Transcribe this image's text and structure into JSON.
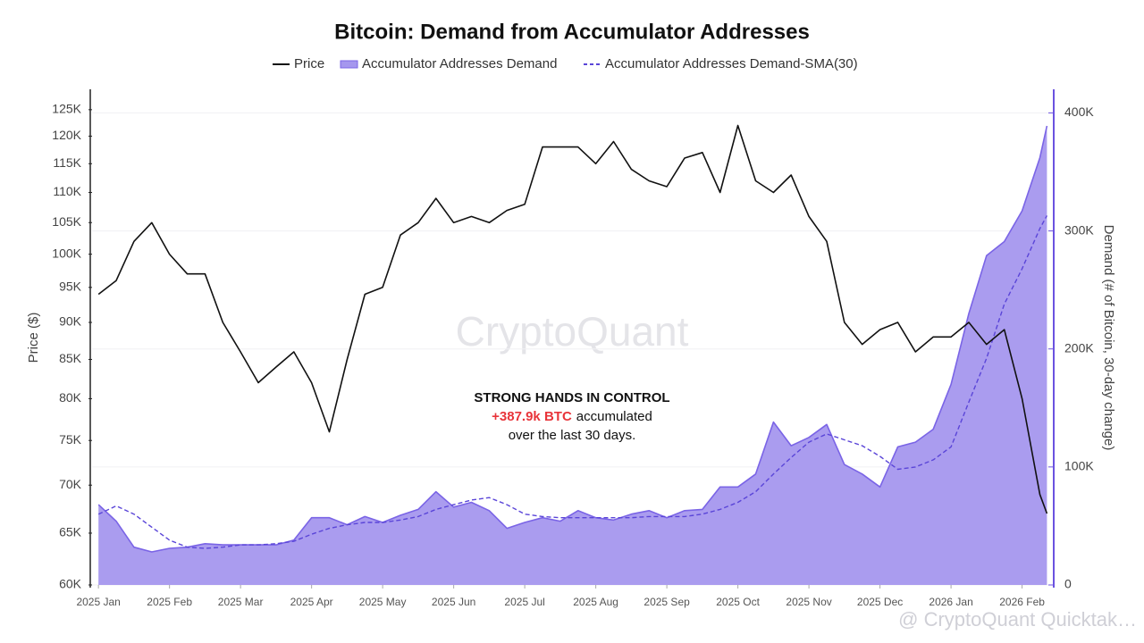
{
  "chart_data": {
    "type": "line",
    "title": "Bitcoin: Demand from Accumulator Addresses",
    "ylabel": "Price ($)",
    "y2label": "Demand (# of Bitcoin, 30-day change)",
    "log_y": true,
    "grid": true,
    "legend": "top",
    "watermark": "CryptoQuant",
    "source": "@ CryptoQuant Quicktak…",
    "annotation": {
      "headline": "STRONG HANDS IN CONTROL",
      "highlight": "+387.9k BTC",
      "highlight_rest": "accumulated",
      "line3": "over the last 30 days.",
      "highlight_color": "#e8343a"
    },
    "x": [
      0,
      0.25,
      0.5,
      0.75,
      1,
      1.25,
      1.5,
      1.75,
      2,
      2.25,
      2.5,
      2.75,
      3,
      3.25,
      3.5,
      3.75,
      4,
      4.25,
      4.5,
      4.75,
      5,
      5.25,
      5.5,
      5.75,
      6,
      6.25,
      6.5,
      6.75,
      7,
      7.25,
      7.5,
      7.75,
      8,
      8.25,
      8.5,
      8.75,
      9,
      9.25,
      9.5,
      9.75,
      10,
      10.25,
      10.5,
      10.75,
      11,
      11.25,
      11.5,
      11.75,
      12,
      12.25,
      12.5,
      12.75,
      13,
      13.25,
      13.35
    ],
    "xlim": [
      -0.09,
      13.37
    ],
    "xticks": [
      {
        "value": 0,
        "label": "2025 Jan"
      },
      {
        "value": 1,
        "label": "2025 Feb"
      },
      {
        "value": 2,
        "label": "2025 Mar"
      },
      {
        "value": 3,
        "label": "2025 Apr"
      },
      {
        "value": 4,
        "label": "2025 May"
      },
      {
        "value": 5,
        "label": "2025 Jun"
      },
      {
        "value": 6,
        "label": "2025 Jul"
      },
      {
        "value": 7,
        "label": "2025 Aug"
      },
      {
        "value": 8,
        "label": "2025 Sep"
      },
      {
        "value": 9,
        "label": "2025 Oct"
      },
      {
        "value": 10,
        "label": "2025 Nov"
      },
      {
        "value": 11,
        "label": "2025 Dec"
      },
      {
        "value": 12,
        "label": "2026 Jan"
      },
      {
        "value": 13,
        "label": "2026 Feb"
      }
    ],
    "ylim": [
      60000,
      129000
    ],
    "yticks": [
      {
        "value": 60000,
        "label": "60K"
      },
      {
        "value": 65000,
        "label": "65K"
      },
      {
        "value": 70000,
        "label": "70K"
      },
      {
        "value": 75000,
        "label": "75K"
      },
      {
        "value": 80000,
        "label": "80K"
      },
      {
        "value": 85000,
        "label": "85K"
      },
      {
        "value": 90000,
        "label": "90K"
      },
      {
        "value": 95000,
        "label": "95K"
      },
      {
        "value": 100000,
        "label": "100K"
      },
      {
        "value": 105000,
        "label": "105K"
      },
      {
        "value": 110000,
        "label": "110K"
      },
      {
        "value": 115000,
        "label": "115K"
      },
      {
        "value": 120000,
        "label": "120K"
      },
      {
        "value": 125000,
        "label": "125K"
      }
    ],
    "y2lim": [
      0,
      420000
    ],
    "y2ticks": [
      0,
      {
        "value": 100000,
        "label": "100K"
      },
      {
        "value": 200000,
        "label": "200K"
      },
      {
        "value": 300000,
        "label": "300K"
      },
      {
        "value": 400000,
        "label": "400K"
      }
    ],
    "series": [
      {
        "name": "Price",
        "color": "#111111",
        "axis": "y",
        "values": [
          94000,
          96000,
          102000,
          105000,
          100000,
          97000,
          97000,
          90000,
          86000,
          82000,
          84000,
          86000,
          82000,
          76000,
          85000,
          94000,
          95000,
          103000,
          105000,
          109000,
          105000,
          106000,
          105000,
          107000,
          108000,
          118000,
          118000,
          118000,
          115000,
          119000,
          114000,
          112000,
          111000,
          116000,
          117000,
          110000,
          122000,
          112000,
          110000,
          113000,
          106000,
          102000,
          90000,
          87000,
          89000,
          90000,
          86000,
          88000,
          88000,
          90000,
          87000,
          89000,
          80000,
          69000,
          67000
        ]
      },
      {
        "name": "Accumulator Addresses Demand",
        "color": "#7a64e6",
        "fill": "#a597ee",
        "axis": "y2",
        "area": true,
        "values": [
          68000,
          54000,
          32000,
          28000,
          31000,
          32000,
          35000,
          34000,
          34000,
          34000,
          34000,
          38000,
          57000,
          57000,
          51000,
          58000,
          53000,
          59000,
          64000,
          79000,
          66000,
          70000,
          63000,
          48000,
          53000,
          57000,
          54000,
          63000,
          57000,
          55000,
          60000,
          63000,
          57000,
          63000,
          64000,
          83000,
          83000,
          94000,
          138000,
          118000,
          125000,
          136000,
          102000,
          94000,
          83000,
          117000,
          121000,
          132000,
          170000,
          230000,
          279000,
          291000,
          317000,
          362000,
          389000
        ]
      },
      {
        "name": "Accumulator Addresses Demand-SMA(30)",
        "color": "#5a45d8",
        "axis": "y2",
        "dashed": true,
        "values": [
          60000,
          67000,
          60000,
          49000,
          38000,
          32000,
          31000,
          32000,
          34000,
          34000,
          35000,
          37000,
          43000,
          48000,
          51000,
          53000,
          53000,
          55000,
          58000,
          64000,
          68000,
          72000,
          74000,
          68000,
          60000,
          58000,
          57000,
          57000,
          57000,
          57000,
          57000,
          58000,
          58000,
          58000,
          60000,
          64000,
          70000,
          79000,
          94000,
          108000,
          121000,
          128000,
          123000,
          118000,
          109000,
          98000,
          100000,
          106000,
          117000,
          155000,
          192000,
          238000,
          268000,
          302000,
          313000
        ]
      }
    ]
  }
}
